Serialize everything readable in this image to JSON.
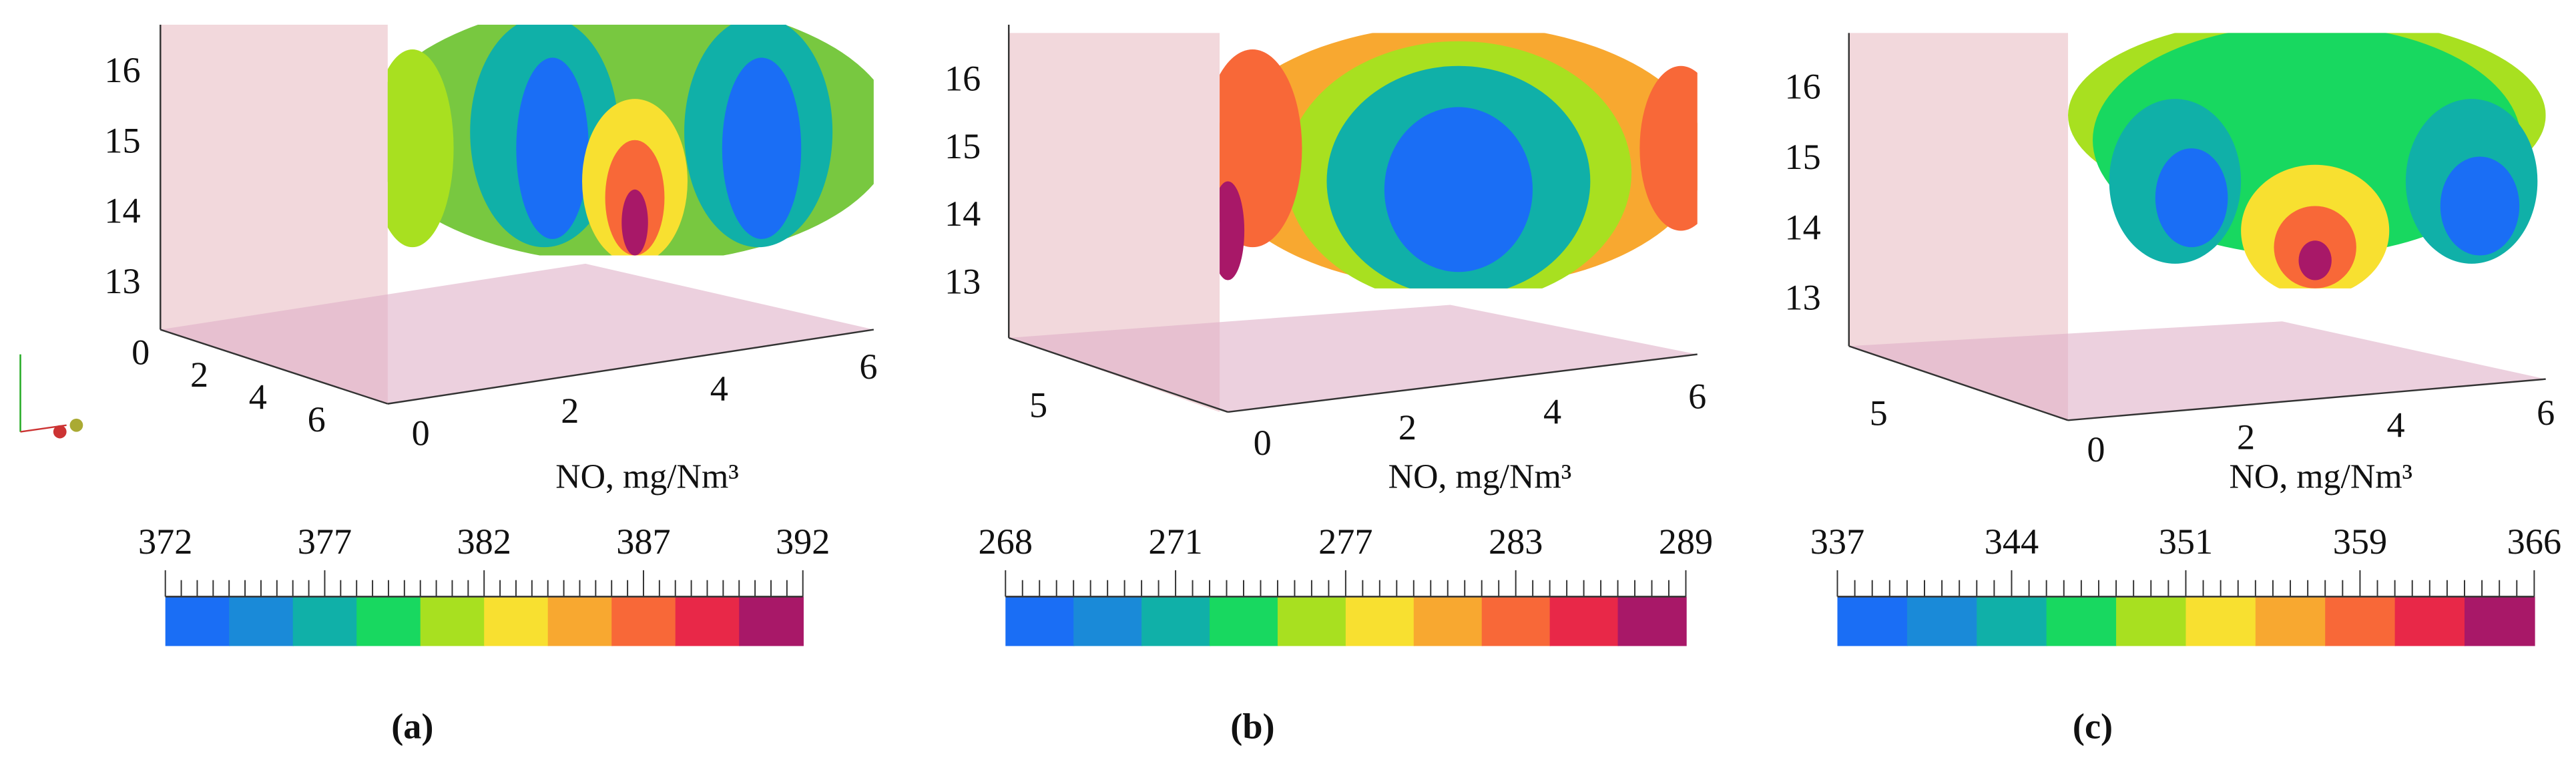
{
  "panels": [
    {
      "label": "(a)",
      "z_ticks": [
        13,
        14,
        15,
        16
      ],
      "y_ticks": [
        0,
        2,
        4,
        6
      ],
      "x_ticks": [
        0,
        2,
        4,
        6
      ],
      "x_label": "NO, mg/Nm³",
      "colorbar_labels": [
        "372",
        "377",
        "382",
        "387",
        "392"
      ],
      "colors": [
        "#1a6ef5",
        "#1a8ad8",
        "#10b0a8",
        "#18d860",
        "#a8e020",
        "#f8e030",
        "#f8a830",
        "#f86838",
        "#e82848",
        "#a81868"
      ]
    },
    {
      "label": "(b)",
      "z_ticks": [
        13,
        14,
        15,
        16
      ],
      "y_ticks": [
        5
      ],
      "x_ticks": [
        0,
        2,
        4,
        6
      ],
      "x_label": "NO, mg/Nm³",
      "colorbar_labels": [
        "268",
        "271",
        "277",
        "283",
        "289"
      ],
      "colors": [
        "#1a6ef5",
        "#1a8ad8",
        "#10b0a8",
        "#18d860",
        "#a8e020",
        "#f8e030",
        "#f8a830",
        "#f86838",
        "#e82848",
        "#a81868"
      ]
    },
    {
      "label": "(c)",
      "z_ticks": [
        13,
        14,
        15,
        16
      ],
      "y_ticks": [
        5
      ],
      "x_ticks": [
        0,
        2,
        4,
        6
      ],
      "x_label": "NO, mg/Nm³",
      "colorbar_labels": [
        "337",
        "344",
        "351",
        "359",
        "366"
      ],
      "colors": [
        "#1a6ef5",
        "#1a8ad8",
        "#10b0a8",
        "#18d860",
        "#a8e020",
        "#f8e030",
        "#f8a830",
        "#f86838",
        "#e82848",
        "#a81868"
      ]
    }
  ]
}
